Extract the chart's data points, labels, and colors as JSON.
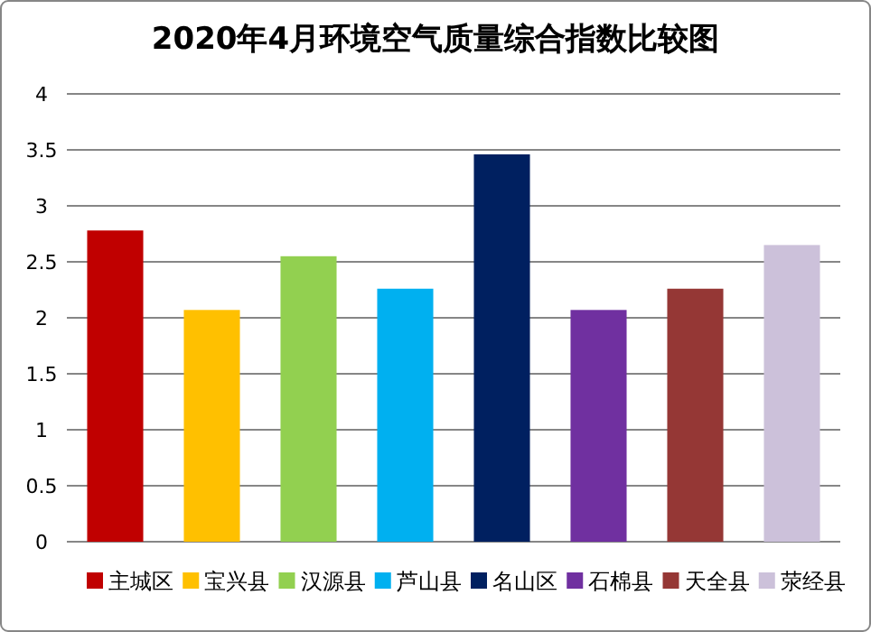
{
  "chart_data": {
    "type": "bar",
    "title": "2020年4月环境空气质量综合指数比较图",
    "categories": [
      null,
      null,
      null,
      null,
      null,
      null,
      null,
      null
    ],
    "series": [
      {
        "name": "主城区",
        "color": "#c00000",
        "values": [
          2.78,
          null,
          null,
          null,
          null,
          null,
          null,
          null
        ]
      },
      {
        "name": "宝兴县",
        "color": "#ffc000",
        "values": [
          null,
          2.07,
          null,
          null,
          null,
          null,
          null,
          null
        ]
      },
      {
        "name": "汉源县",
        "color": "#92d050",
        "values": [
          null,
          null,
          2.55,
          null,
          null,
          null,
          null,
          null
        ]
      },
      {
        "name": "芦山县",
        "color": "#00b0f0",
        "values": [
          null,
          null,
          null,
          2.26,
          null,
          null,
          null,
          null
        ]
      },
      {
        "name": "名山区",
        "color": "#002060",
        "values": [
          null,
          null,
          null,
          null,
          3.46,
          null,
          null,
          null
        ]
      },
      {
        "name": "石棉县",
        "color": "#7030a0",
        "values": [
          null,
          null,
          null,
          null,
          null,
          2.07,
          null,
          null
        ]
      },
      {
        "name": "天全县",
        "color": "#953735",
        "values": [
          null,
          null,
          null,
          null,
          null,
          null,
          2.26,
          null
        ]
      },
      {
        "name": "荥经县",
        "color": "#ccc1da",
        "values": [
          null,
          null,
          null,
          null,
          null,
          null,
          null,
          2.65
        ]
      }
    ],
    "stacked": true,
    "ylim": [
      0,
      4
    ],
    "yticks": [
      0,
      0.5,
      1,
      1.5,
      2,
      2.5,
      3,
      3.5,
      4
    ],
    "grid": "y",
    "legend": "bottom",
    "tick_labels": "y"
  }
}
